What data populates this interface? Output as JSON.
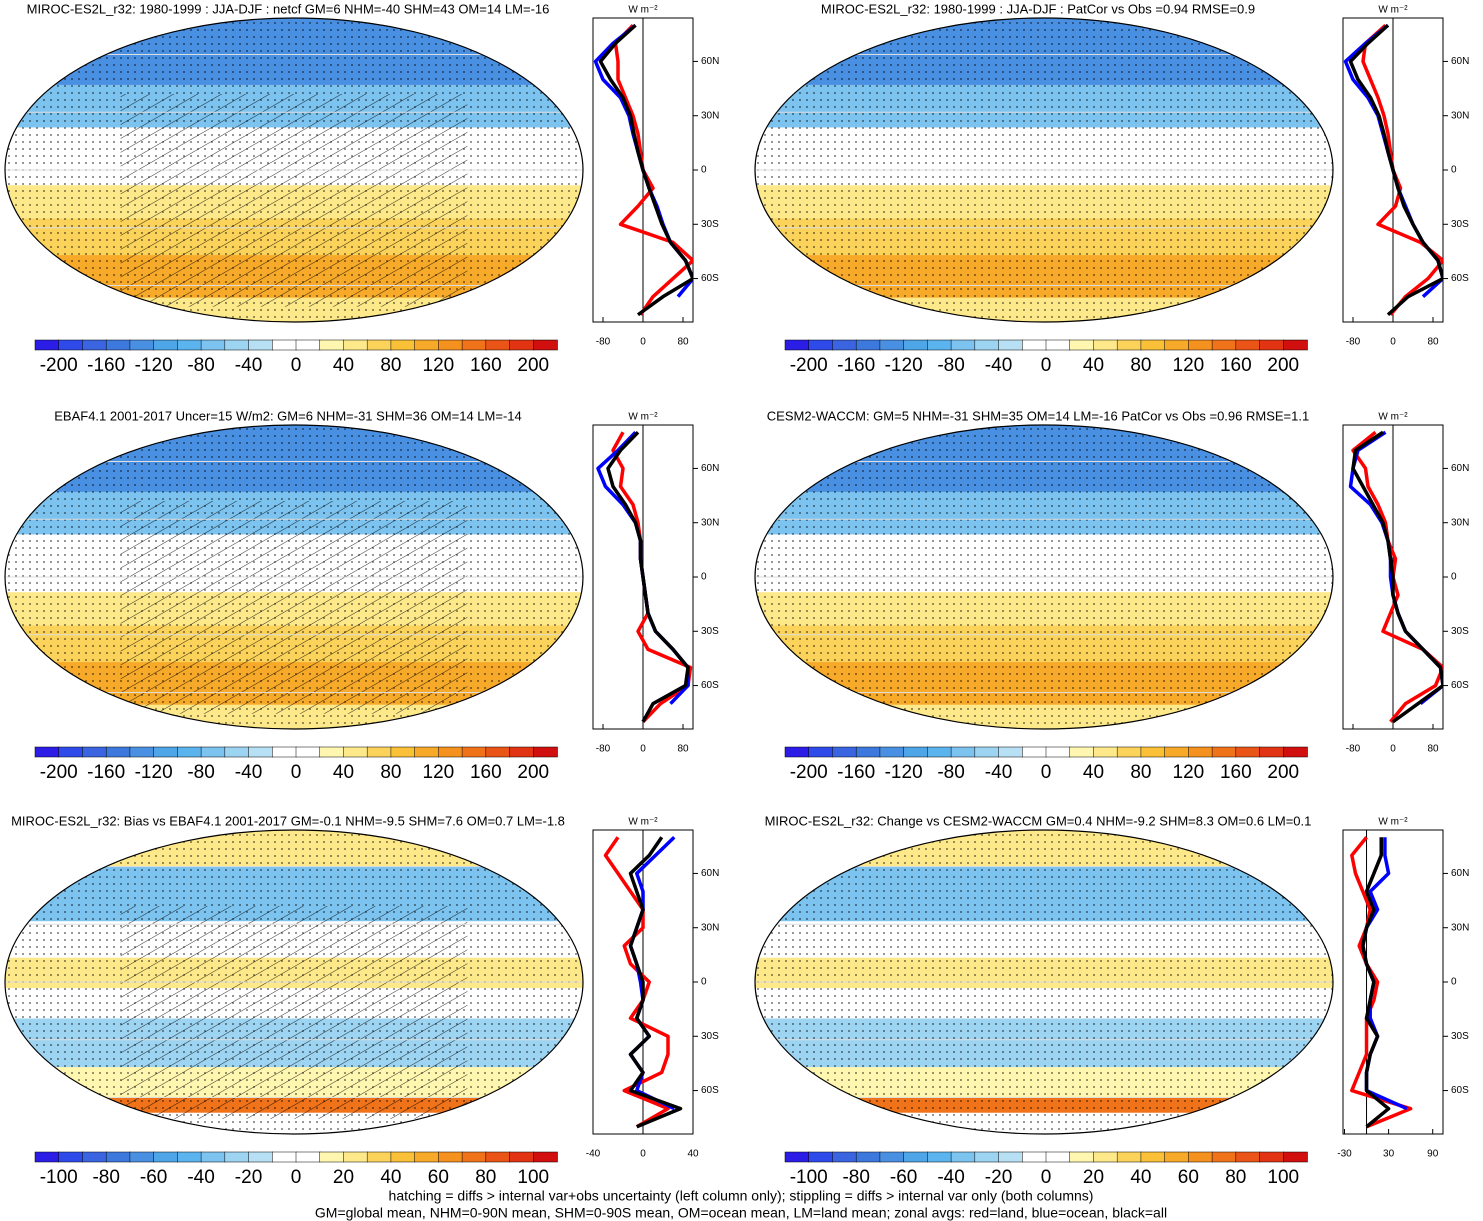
{
  "chart_data": [
    {
      "type": "line",
      "title": "MIROC-ES2L_r32: 1980-1999 : JJA-DJF : netcf GM=6 NHM=-40 SHM=43 OM=14 LM=-16",
      "unit_label": "W m⁻²",
      "xlim": [
        -100,
        100
      ],
      "xticks": [
        -80,
        0,
        80
      ],
      "ylim": [
        -84,
        84
      ],
      "yticks": [
        {
          "value": 60,
          "label": "60N"
        },
        {
          "value": 30,
          "label": "30N"
        },
        0,
        {
          "value": -30,
          "label": "30S"
        },
        {
          "value": -60,
          "label": "60S"
        }
      ],
      "latitudes": [
        -80,
        -70,
        -60,
        -50,
        -40,
        -30,
        -20,
        -10,
        0,
        10,
        20,
        30,
        40,
        50,
        60,
        70,
        80
      ],
      "series": [
        {
          "color": "#ff0000",
          "values": [
            -5,
            20,
            60,
            100,
            60,
            -45,
            -10,
            20,
            0,
            -5,
            -10,
            -20,
            -35,
            -50,
            -50,
            -55,
            -20
          ]
        },
        {
          "color": "#0000ff",
          "values": [
            null,
            70,
            100,
            85,
            55,
            40,
            28,
            12,
            0,
            -10,
            -20,
            -28,
            -45,
            -80,
            -95,
            -60,
            -15
          ]
        },
        {
          "color": "#000000",
          "values": [
            -10,
            40,
            100,
            85,
            55,
            38,
            25,
            12,
            0,
            -10,
            -18,
            -25,
            -40,
            -65,
            -85,
            -55,
            -15
          ]
        }
      ],
      "colorbar_range": [
        -220,
        220
      ],
      "colorbar_ticks": [
        -200,
        -160,
        -120,
        -80,
        -40,
        0,
        40,
        80,
        120,
        160,
        200
      ]
    },
    {
      "type": "line",
      "title": "MIROC-ES2L_r32: 1980-1999 : JJA-DJF : PatCor vs Obs =0.94 RMSE=0.9",
      "unit_label": "W m⁻²",
      "xlim": [
        -100,
        100
      ],
      "xticks": [
        -80,
        0,
        80
      ],
      "ylim": [
        -84,
        84
      ],
      "yticks": [
        {
          "value": 60,
          "label": "60N"
        },
        {
          "value": 30,
          "label": "30N"
        },
        0,
        {
          "value": -30,
          "label": "30S"
        },
        {
          "value": -60,
          "label": "60S"
        }
      ],
      "latitudes": [
        -80,
        -70,
        -60,
        -50,
        -40,
        -30,
        -20,
        -10,
        0,
        10,
        20,
        30,
        40,
        50,
        60,
        70,
        80
      ],
      "series": [
        {
          "color": "#ff0000",
          "values": [
            -5,
            25,
            70,
            100,
            55,
            -30,
            5,
            15,
            0,
            -5,
            -10,
            -18,
            -30,
            -45,
            -60,
            -55,
            -15
          ]
        },
        {
          "color": "#0000ff",
          "values": [
            null,
            60,
            100,
            90,
            60,
            40,
            25,
            10,
            0,
            -10,
            -20,
            -30,
            -50,
            -80,
            -95,
            -55,
            -10
          ]
        },
        {
          "color": "#000000",
          "values": [
            -10,
            30,
            100,
            90,
            60,
            40,
            22,
            10,
            0,
            -10,
            -18,
            -28,
            -45,
            -70,
            -85,
            -50,
            -10
          ]
        }
      ],
      "colorbar_range": [
        -220,
        220
      ],
      "colorbar_ticks": [
        -200,
        -160,
        -120,
        -80,
        -40,
        0,
        40,
        80,
        120,
        160,
        200
      ]
    },
    {
      "type": "line",
      "title": "EBAF4.1 2001-2017 Uncer=15 W/m2: GM=6 NHM=-31 SHM=36 OM=14 LM=-14",
      "unit_label": "W m⁻²",
      "xlim": [
        -100,
        100
      ],
      "xticks": [
        -80,
        0,
        80
      ],
      "ylim": [
        -84,
        84
      ],
      "yticks": [
        {
          "value": 60,
          "label": "60N"
        },
        {
          "value": 30,
          "label": "30N"
        },
        0,
        {
          "value": -30,
          "label": "30S"
        },
        {
          "value": -60,
          "label": "60S"
        }
      ],
      "latitudes": [
        -80,
        -70,
        -60,
        -50,
        -40,
        -30,
        -20,
        -10,
        0,
        10,
        20,
        30,
        40,
        50,
        60,
        70,
        80
      ],
      "series": [
        {
          "color": "#ff0000",
          "values": [
            0,
            35,
            90,
            95,
            10,
            -10,
            10,
            5,
            0,
            -5,
            -5,
            -10,
            -20,
            -45,
            -40,
            -60,
            -40
          ]
        },
        {
          "color": "#0000ff",
          "values": [
            null,
            55,
            90,
            90,
            60,
            25,
            10,
            5,
            0,
            -5,
            -5,
            -15,
            -40,
            -75,
            -90,
            -50,
            -15
          ]
        },
        {
          "color": "#000000",
          "values": [
            0,
            20,
            85,
            90,
            60,
            25,
            10,
            5,
            0,
            -5,
            -5,
            -15,
            -35,
            -60,
            -70,
            -45,
            -10
          ]
        }
      ],
      "colorbar_range": [
        -220,
        220
      ],
      "colorbar_ticks": [
        -200,
        -160,
        -120,
        -80,
        -40,
        0,
        40,
        80,
        120,
        160,
        200
      ]
    },
    {
      "type": "line",
      "title": "CESM2-WACCM: GM=5 NHM=-31 SHM=35 OM=14 LM=-16 PatCor vs Obs =0.96 RMSE=1.1",
      "unit_label": "W m⁻²",
      "xlim": [
        -100,
        100
      ],
      "xticks": [
        -80,
        0,
        80
      ],
      "ylim": [
        -84,
        84
      ],
      "yticks": [
        {
          "value": 60,
          "label": "60N"
        },
        {
          "value": 30,
          "label": "30N"
        },
        0,
        {
          "value": -30,
          "label": "30S"
        },
        {
          "value": -60,
          "label": "60S"
        }
      ],
      "latitudes": [
        -80,
        -70,
        -60,
        -50,
        -40,
        -30,
        -20,
        -10,
        0,
        10,
        20,
        30,
        40,
        50,
        60,
        70,
        80
      ],
      "series": [
        {
          "color": "#ff0000",
          "values": [
            -5,
            25,
            85,
            100,
            60,
            -20,
            -5,
            10,
            0,
            5,
            -10,
            -15,
            -30,
            -50,
            -55,
            -80,
            -35
          ]
        },
        {
          "color": "#0000ff",
          "values": [
            null,
            55,
            100,
            95,
            60,
            25,
            10,
            0,
            -5,
            -5,
            -10,
            -22,
            -45,
            -85,
            -80,
            -70,
            -15
          ]
        },
        {
          "color": "#000000",
          "values": [
            0,
            50,
            100,
            95,
            60,
            25,
            10,
            0,
            0,
            -5,
            -10,
            -20,
            -40,
            -60,
            -80,
            -75,
            -20
          ]
        }
      ],
      "colorbar_range": [
        -220,
        220
      ],
      "colorbar_ticks": [
        -200,
        -160,
        -120,
        -80,
        -40,
        0,
        40,
        80,
        120,
        160,
        200
      ]
    },
    {
      "type": "line",
      "title": "MIROC-ES2L_r32: Bias vs EBAF4.1 2001-2017 GM=-0.1 NHM=-9.5 SHM=7.6 OM=0.7 LM=-1.8",
      "unit_label": "W m⁻²",
      "xlim": [
        -40,
        40
      ],
      "xticks": [
        -40,
        0,
        40
      ],
      "ylim": [
        -84,
        84
      ],
      "yticks": [
        {
          "value": 60,
          "label": "60N"
        },
        {
          "value": 30,
          "label": "30N"
        },
        0,
        {
          "value": -30,
          "label": "30S"
        },
        {
          "value": -60,
          "label": "60S"
        }
      ],
      "latitudes": [
        -80,
        -70,
        -60,
        -50,
        -40,
        -30,
        -20,
        -10,
        0,
        10,
        20,
        30,
        40,
        50,
        60,
        70,
        80
      ],
      "series": [
        {
          "color": "#ff0000",
          "values": [
            -5,
            20,
            -15,
            15,
            20,
            20,
            -10,
            0,
            5,
            -10,
            -15,
            0,
            0,
            -10,
            -20,
            -30,
            -20
          ]
        },
        {
          "color": "#0000ff",
          "values": [
            null,
            25,
            -5,
            0,
            -10,
            5,
            -5,
            0,
            -2,
            -5,
            -10,
            -5,
            0,
            0,
            -5,
            10,
            25
          ]
        },
        {
          "color": "#000000",
          "values": [
            -5,
            30,
            -10,
            0,
            -10,
            5,
            -5,
            0,
            0,
            -5,
            -10,
            -5,
            0,
            -5,
            -10,
            5,
            15
          ]
        }
      ],
      "colorbar_range": [
        -110,
        110
      ],
      "colorbar_ticks": [
        -100,
        -80,
        -60,
        -40,
        -20,
        0,
        20,
        40,
        60,
        80,
        100
      ]
    },
    {
      "type": "line",
      "title": "MIROC-ES2L_r32: Change vs CESM2-WACCM GM=0.4 NHM=-9.2 SHM=8.3 OM=0.6 LM=0.1",
      "unit_label": "W m⁻²",
      "xlim": [
        -32,
        104
      ],
      "xticks": [
        -30,
        30,
        90
      ],
      "ylim": [
        -84,
        84
      ],
      "yticks": [
        {
          "value": 60,
          "label": "60N"
        },
        {
          "value": 30,
          "label": "30N"
        },
        0,
        {
          "value": -30,
          "label": "30S"
        },
        {
          "value": -60,
          "label": "60S"
        }
      ],
      "latitudes": [
        -80,
        -70,
        -60,
        -50,
        -40,
        -30,
        -20,
        -10,
        0,
        10,
        20,
        30,
        40,
        50,
        60,
        70,
        80
      ],
      "series": [
        {
          "color": "#ff0000",
          "values": [
            0,
            60,
            -20,
            -10,
            0,
            0,
            0,
            10,
            15,
            0,
            -10,
            0,
            5,
            -5,
            -15,
            -20,
            0
          ]
        },
        {
          "color": "#0000ff",
          "values": [
            null,
            55,
            0,
            0,
            5,
            15,
            5,
            5,
            10,
            0,
            -5,
            0,
            15,
            5,
            30,
            25,
            25
          ]
        },
        {
          "color": "#000000",
          "values": [
            0,
            30,
            0,
            0,
            5,
            15,
            0,
            5,
            10,
            0,
            -5,
            0,
            10,
            0,
            10,
            20,
            20
          ]
        }
      ],
      "colorbar_range": [
        -110,
        110
      ],
      "colorbar_ticks": [
        -100,
        -80,
        -60,
        -40,
        -20,
        0,
        20,
        40,
        60,
        80,
        100
      ]
    }
  ],
  "colorbar_colors": [
    "#2b1ce6",
    "#2e4ae8",
    "#3a64e0",
    "#3d79dd",
    "#4a90e2",
    "#4ea6e8",
    "#5bb4ee",
    "#7cc3ef",
    "#9dd4f2",
    "#b7e0f5",
    "#ffffff",
    "#ffffff",
    "#fff7b0",
    "#fde88a",
    "#fbd35a",
    "#f9c038",
    "#f7a929",
    "#f5911f",
    "#f0731a",
    "#ea5416",
    "#e23312",
    "#d10f0f"
  ],
  "footnotes": [
    "hatching = diffs > internal var+obs uncertainty (left column only); stippling = diffs > internal var only (both columns)",
    "GM=global mean, NHM=0-90N mean, SHM=0-90S mean, OM=ocean mean, LM=land mean; zonal avgs: red=land, blue=ocean, black=all"
  ]
}
